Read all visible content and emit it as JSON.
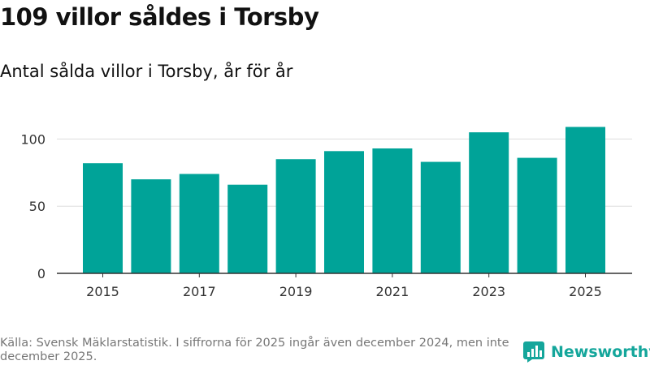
{
  "header": {
    "title": "109 villor såldes i Torsby",
    "subtitle": "Antal sålda villor i Torsby, år för år"
  },
  "chart_data": {
    "type": "bar",
    "title": "109 villor såldes i Torsby",
    "subtitle": "Antal sålda villor i Torsby, år för år",
    "categories": [
      "2015",
      "2016",
      "2017",
      "2018",
      "2019",
      "2020",
      "2021",
      "2022",
      "2023",
      "2024",
      "2025"
    ],
    "values": [
      82,
      70,
      74,
      66,
      85,
      91,
      93,
      83,
      105,
      86,
      109
    ],
    "x_tick_labels": [
      "2015",
      "2017",
      "2019",
      "2021",
      "2023",
      "2025"
    ],
    "y_ticks": [
      0,
      50,
      100
    ],
    "ylim": [
      0,
      115
    ],
    "xlabel": "",
    "ylabel": "",
    "grid": true,
    "bar_color": "#00a398"
  },
  "footer": {
    "source": "Källa: Svensk Mäklarstatistik. I siffrorna för 2025 ingår även december 2024, men inte december 2025."
  },
  "logo": {
    "text": "Newsworthy",
    "icon": "newsworthy-chart-icon",
    "color": "#14a69b"
  }
}
